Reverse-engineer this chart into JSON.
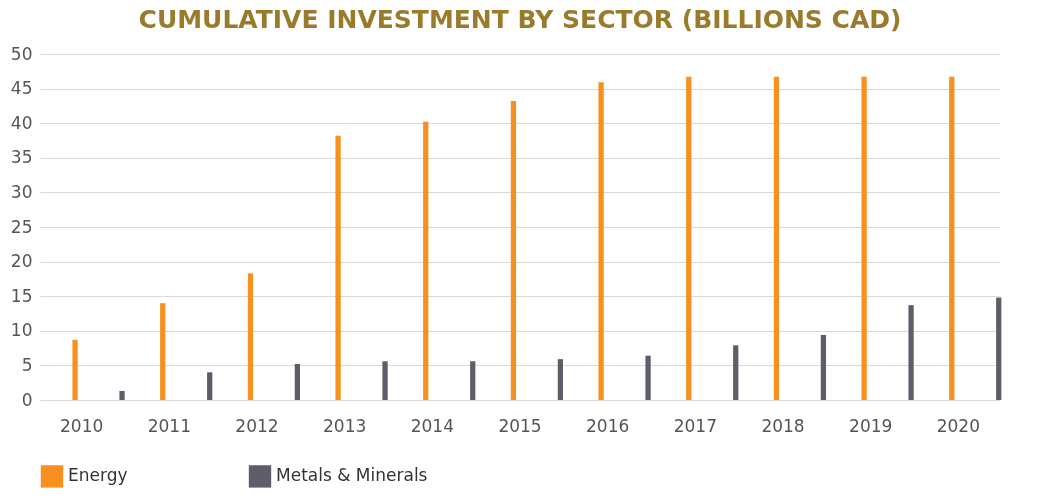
{
  "chart_data": {
    "type": "bar",
    "title": "CUMULATIVE INVESTMENT BY SECTOR (BILLIONS CAD)",
    "categories": [
      "2010",
      "2011",
      "2012",
      "2013",
      "2014",
      "2015",
      "2016",
      "2017",
      "2018",
      "2019",
      "2020"
    ],
    "series": [
      {
        "name": "Energy",
        "color": "#f7901e",
        "values": [
          8.7,
          14.0,
          18.3,
          38.2,
          40.2,
          43.2,
          45.9,
          46.7,
          46.7,
          46.7,
          46.7
        ]
      },
      {
        "name": "Metals & Minerals",
        "color": "#605c6a",
        "values": [
          1.3,
          4.0,
          5.2,
          5.6,
          5.6,
          5.9,
          6.4,
          7.9,
          9.4,
          13.7,
          14.8
        ]
      }
    ],
    "ylim": [
      0,
      50
    ],
    "yticks": [
      0,
      5,
      10,
      15,
      20,
      25,
      30,
      35,
      40,
      45,
      50
    ],
    "grid": "y",
    "legend": "bottom"
  }
}
